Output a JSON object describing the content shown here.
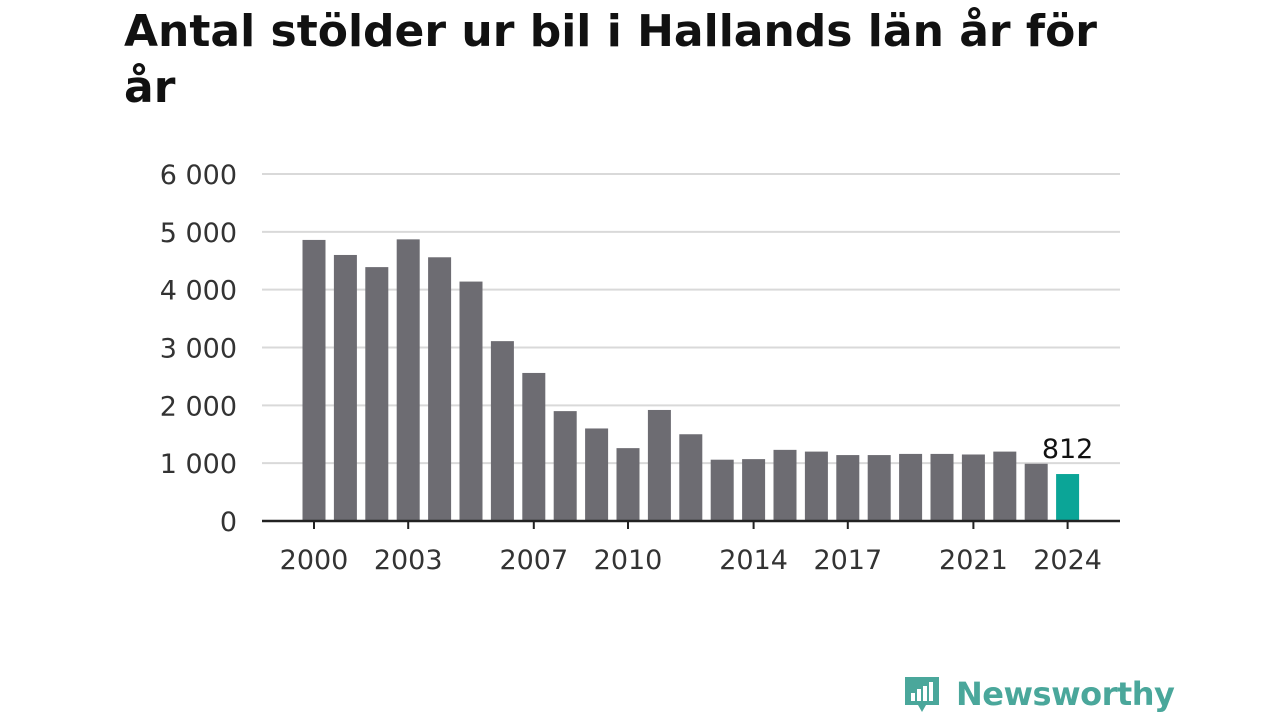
{
  "chart_data": {
    "type": "bar",
    "title": "Antal stölder ur bil i Hallands län år för år",
    "xlabel": "",
    "ylabel": "",
    "categories": [
      "2000",
      "2001",
      "2002",
      "2003",
      "2004",
      "2005",
      "2006",
      "2007",
      "2008",
      "2009",
      "2010",
      "2011",
      "2012",
      "2013",
      "2014",
      "2015",
      "2016",
      "2017",
      "2018",
      "2019",
      "2020",
      "2021",
      "2022",
      "2023",
      "2024"
    ],
    "values": [
      4860,
      4600,
      4390,
      4870,
      4560,
      4140,
      3110,
      2560,
      1900,
      1600,
      1260,
      1920,
      1500,
      1060,
      1070,
      1230,
      1200,
      1140,
      1140,
      1160,
      1160,
      1150,
      1200,
      990,
      812
    ],
    "x_tick_labels": [
      "2000",
      "2003",
      "2007",
      "2010",
      "2014",
      "2017",
      "2021",
      "2024"
    ],
    "y_ticks": [
      0,
      1000,
      2000,
      3000,
      4000,
      5000,
      6000
    ],
    "y_tick_labels": [
      "0",
      "1 000",
      "2 000",
      "3 000",
      "4 000",
      "5 000",
      "6 000"
    ],
    "ylim": [
      0,
      6000
    ],
    "grid": true,
    "highlight_index": 24,
    "highlight_label": "812",
    "colors": {
      "bar": "#6d6c72",
      "highlight": "#0ba597",
      "grid": "#d9d9d9",
      "axis": "#222222"
    }
  },
  "brand": {
    "name": "Newsworthy",
    "color": "#4aa79b"
  }
}
